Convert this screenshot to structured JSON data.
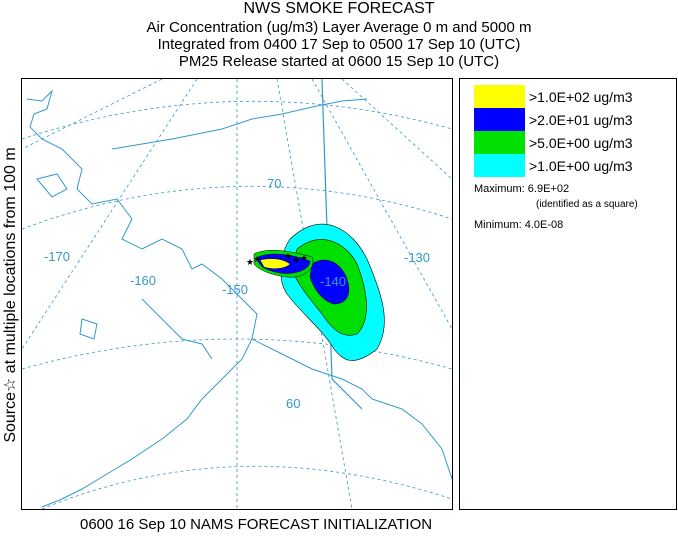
{
  "header": {
    "title": "NWS SMOKE FORECAST",
    "line2": "Air Concentration (ug/m3) Layer Average    0 m and  5000 m",
    "line3": "Integrated from 0400 17 Sep to 0500 17 Sep 10 (UTC)",
    "line4": "PM25 Release started at 0600 15 Sep 10 (UTC)"
  },
  "side_label": "Source☆  at multiple locations  from   100 m",
  "footer": "0600 16 Sep 10 NAMS FORECAST INITIALIZATION",
  "legend": {
    "items": [
      {
        "label": ">1.0E+02 ug/m3",
        "color": "#ffff00"
      },
      {
        "label": ">2.0E+01 ug/m3",
        "color": "#0000ff"
      },
      {
        "label": ">5.0E+00 ug/m3",
        "color": "#00e000"
      },
      {
        "label": ">1.0E+00 ug/m3",
        "color": "#00ffff"
      }
    ],
    "maximum": "Maximum: 6.9E+02",
    "maximum_note": "(identified as a square)",
    "minimum": "Minimum: 4.0E-08"
  },
  "map": {
    "longitude_labels": [
      "-170",
      "-160",
      "-150",
      "-140",
      "-130"
    ],
    "latitude_labels": [
      "70",
      "60"
    ],
    "grid_color": "#3399cc",
    "coast_color": "#3399cc"
  }
}
